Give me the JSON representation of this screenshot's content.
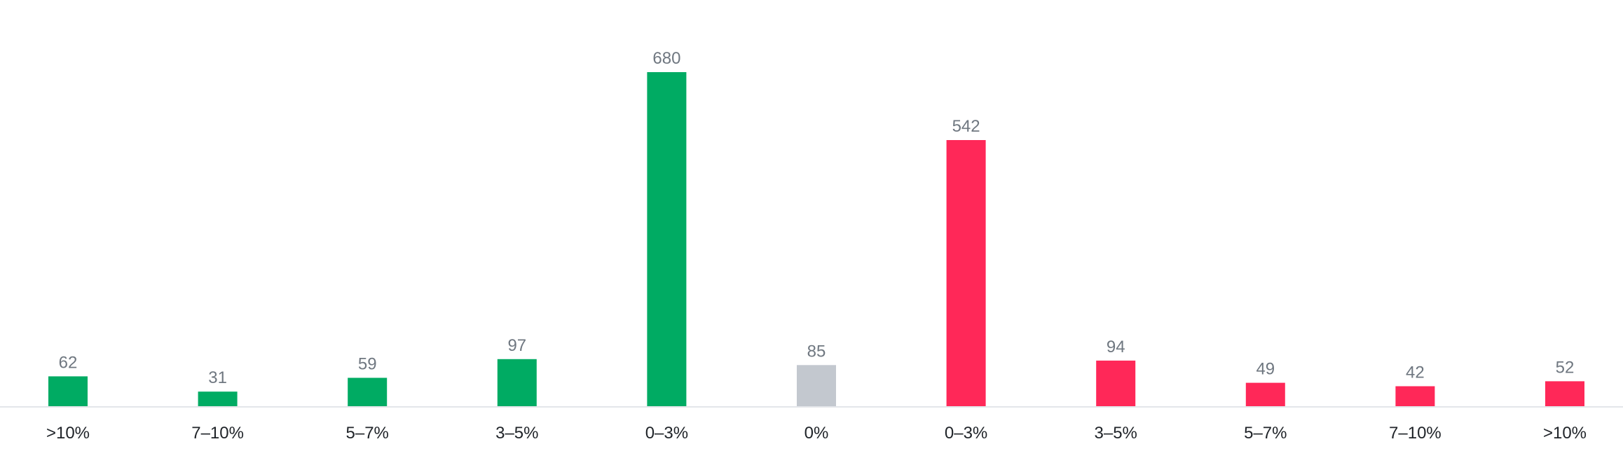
{
  "chart_data": {
    "type": "bar",
    "title": "",
    "xlabel": "",
    "ylabel": "",
    "categories": [
      ">10%",
      "7–10%",
      "5–7%",
      "3–5%",
      "0–3%",
      "0%",
      "0–3%",
      "3–5%",
      "5–7%",
      "7–10%",
      ">10%"
    ],
    "values": [
      62,
      31,
      59,
      97,
      680,
      85,
      542,
      94,
      49,
      42,
      52
    ],
    "bar_colors": [
      "#00ab63",
      "#00ab63",
      "#00ab63",
      "#00ab63",
      "#00ab63",
      "#c3c8cf",
      "#ff2858",
      "#ff2858",
      "#ff2858",
      "#ff2858",
      "#ff2858"
    ],
    "ylim": [
      0,
      680
    ],
    "grid": false,
    "legend": "none",
    "data_labels": true
  },
  "colors": {
    "up": "#00ab63",
    "flat": "#c3c8cf",
    "down": "#ff2858",
    "value_label": "#6f7780",
    "tick_label": "#1f2328",
    "axis": "#e3e6ea"
  }
}
